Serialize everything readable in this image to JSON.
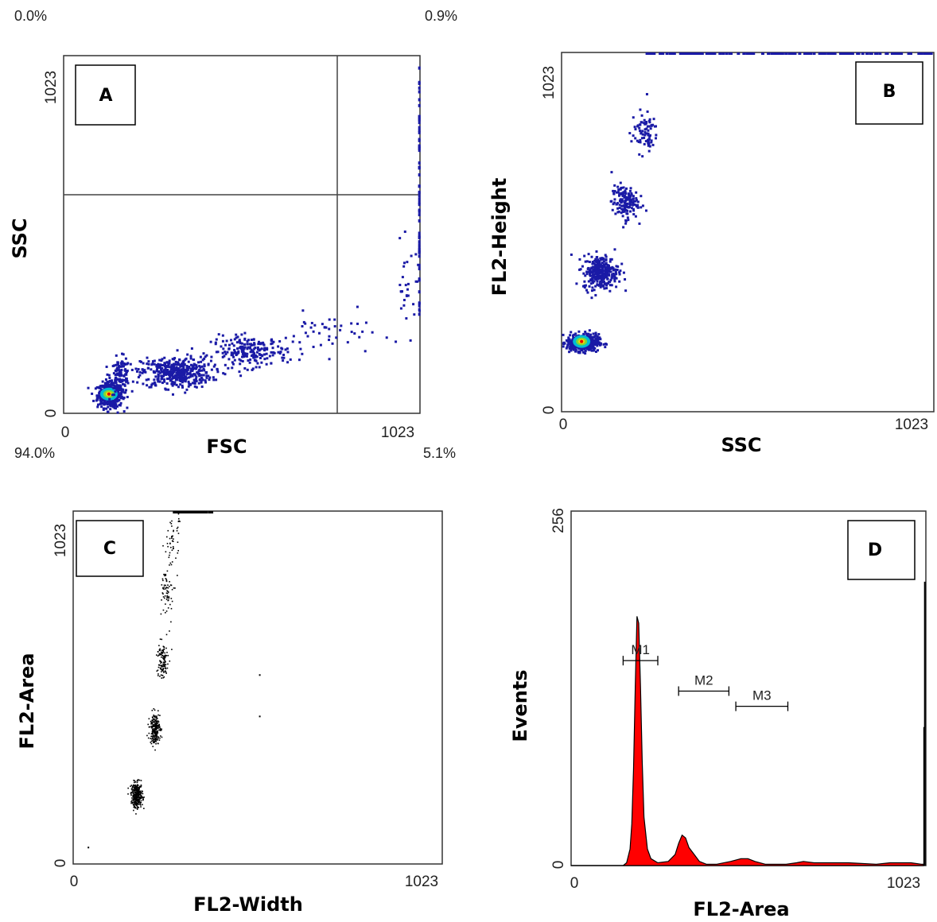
{
  "chart_data": [
    {
      "panel": "A",
      "type": "scatter",
      "xlabel": "FSC",
      "ylabel": "SSC",
      "xlim": [
        0,
        1023
      ],
      "ylim": [
        0,
        1023
      ],
      "x_ticks": [
        "0",
        "1023"
      ],
      "y_ticks": [
        "0",
        "1023"
      ],
      "quadrant_gate": {
        "x": 800,
        "y": 620
      },
      "quadrant_percent": {
        "upper_left": "0.0%",
        "upper_right": "0.9%",
        "lower_left": "94.0%",
        "lower_right": "5.1%"
      },
      "clusters": [
        {
          "x": 130,
          "y": 55,
          "spread": [
            18,
            18
          ],
          "n": 420,
          "density": "peak"
        },
        {
          "x": 160,
          "y": 110,
          "spread": [
            14,
            26
          ],
          "n": 130,
          "density": "high"
        },
        {
          "x": 320,
          "y": 120,
          "spread": [
            50,
            22
          ],
          "n": 420,
          "density": "high"
        },
        {
          "x": 530,
          "y": 180,
          "spread": [
            55,
            22
          ],
          "n": 220,
          "density": "low"
        },
        {
          "x": 760,
          "y": 230,
          "spread": [
            70,
            30
          ],
          "n": 45,
          "density": "low"
        },
        {
          "x": 985,
          "y": 360,
          "spread": [
            20,
            60
          ],
          "n": 30,
          "density": "low"
        }
      ],
      "edge_events": {
        "x": 1020,
        "y_range": [
          280,
          1000
        ],
        "n": 60
      }
    },
    {
      "panel": "B",
      "type": "scatter",
      "xlabel": "SSC",
      "ylabel": "FL2-Height",
      "xlim": [
        0,
        1023
      ],
      "ylim": [
        0,
        1023
      ],
      "x_ticks": [
        "0",
        "1023"
      ],
      "y_ticks": [
        "0",
        "1023"
      ],
      "clusters": [
        {
          "x": 55,
          "y": 200,
          "spread": [
            22,
            12
          ],
          "n": 480,
          "density": "peak"
        },
        {
          "x": 105,
          "y": 400,
          "spread": [
            24,
            24
          ],
          "n": 300,
          "density": "high"
        },
        {
          "x": 170,
          "y": 600,
          "spread": [
            18,
            24
          ],
          "n": 150,
          "density": "low"
        },
        {
          "x": 225,
          "y": 800,
          "spread": [
            18,
            30
          ],
          "n": 80,
          "density": "low"
        }
      ],
      "top_edge_events": {
        "y": 1023,
        "x_range": [
          230,
          1023
        ],
        "n": 130
      }
    },
    {
      "panel": "C",
      "type": "scatter",
      "xlabel": "FL2-Width",
      "ylabel": "FL2-Area",
      "xlim": [
        0,
        1023
      ],
      "ylim": [
        0,
        1023
      ],
      "x_ticks": [
        "0",
        "1023"
      ],
      "y_ticks": [
        "0",
        "1023"
      ],
      "clusters": [
        {
          "x": 175,
          "y": 200,
          "spread": [
            8,
            18
          ],
          "n": 300
        },
        {
          "x": 225,
          "y": 395,
          "spread": [
            7,
            22
          ],
          "n": 220
        },
        {
          "x": 245,
          "y": 590,
          "spread": [
            8,
            28
          ],
          "n": 120
        },
        {
          "x": 260,
          "y": 790,
          "spread": [
            8,
            45
          ],
          "n": 70
        },
        {
          "x": 275,
          "y": 950,
          "spread": [
            8,
            40
          ],
          "n": 50
        }
      ],
      "outliers": [
        {
          "x": 40,
          "y": 50
        },
        {
          "x": 515,
          "y": 430
        },
        {
          "x": 515,
          "y": 550
        }
      ],
      "top_edge_events": {
        "y": 1023,
        "x_range": [
          270,
          380
        ],
        "n": 60
      }
    },
    {
      "panel": "D",
      "type": "area",
      "xlabel": "FL2-Area",
      "ylabel": "Events",
      "xlim": [
        0,
        1023
      ],
      "ylim": [
        0,
        256
      ],
      "x_ticks": [
        "0",
        "1023"
      ],
      "y_ticks": [
        "0",
        "256"
      ],
      "color": "#ff0000",
      "histogram_points": [
        [
          0,
          0
        ],
        [
          150,
          0
        ],
        [
          160,
          2
        ],
        [
          170,
          12
        ],
        [
          175,
          30
        ],
        [
          180,
          70
        ],
        [
          185,
          130
        ],
        [
          190,
          180
        ],
        [
          195,
          175
        ],
        [
          200,
          130
        ],
        [
          205,
          75
        ],
        [
          210,
          35
        ],
        [
          220,
          12
        ],
        [
          230,
          5
        ],
        [
          250,
          2
        ],
        [
          280,
          3
        ],
        [
          300,
          8
        ],
        [
          310,
          16
        ],
        [
          320,
          22
        ],
        [
          330,
          20
        ],
        [
          340,
          13
        ],
        [
          355,
          8
        ],
        [
          370,
          3
        ],
        [
          390,
          1
        ],
        [
          420,
          1
        ],
        [
          460,
          3
        ],
        [
          490,
          5
        ],
        [
          510,
          5
        ],
        [
          530,
          3
        ],
        [
          560,
          1
        ],
        [
          620,
          1
        ],
        [
          650,
          2
        ],
        [
          670,
          3
        ],
        [
          700,
          2
        ],
        [
          760,
          2
        ],
        [
          800,
          2
        ],
        [
          880,
          1
        ],
        [
          920,
          2
        ],
        [
          980,
          2
        ],
        [
          1010,
          1
        ],
        [
          1016,
          1
        ]
      ],
      "end_spikes": [
        {
          "x": 1018,
          "value": 100
        },
        {
          "x": 1020,
          "value": 205
        }
      ],
      "markers": [
        {
          "label": "M1",
          "start": 150,
          "end": 250,
          "level": 148
        },
        {
          "label": "M2",
          "start": 310,
          "end": 455,
          "level": 126
        },
        {
          "label": "M3",
          "start": 475,
          "end": 625,
          "level": 115
        }
      ]
    }
  ]
}
